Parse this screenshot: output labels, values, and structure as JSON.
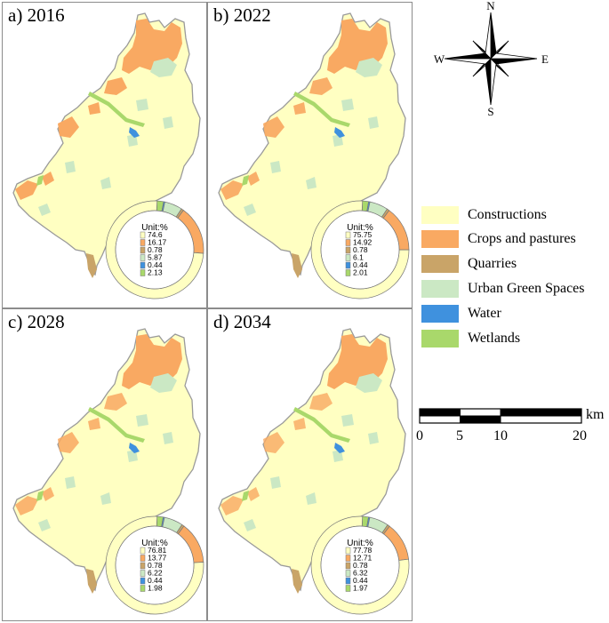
{
  "panels": [
    {
      "label": "a) 2016",
      "unit": "Unit:%",
      "values": [
        "74.6",
        "16.17",
        "0.78",
        "5.87",
        "0.44",
        "2.13"
      ],
      "shares": [
        74.6,
        16.17,
        0.78,
        5.87,
        0.44,
        2.13
      ]
    },
    {
      "label": "b) 2022",
      "unit": "Unit:%",
      "values": [
        "75.75",
        "14.92",
        "0.78",
        "6.1",
        "0.44",
        "2.01"
      ],
      "shares": [
        75.75,
        14.92,
        0.78,
        6.1,
        0.44,
        2.01
      ]
    },
    {
      "label": "c) 2028",
      "unit": "Unit:%",
      "values": [
        "76.81",
        "13.77",
        "0.78",
        "6.22",
        "0.44",
        "1.98"
      ],
      "shares": [
        76.81,
        13.77,
        0.78,
        6.22,
        0.44,
        1.98
      ]
    },
    {
      "label": "d) 2034",
      "unit": "Unit:%",
      "values": [
        "77.78",
        "12.71",
        "0.78",
        "6.32",
        "0.44",
        "1.97"
      ],
      "shares": [
        77.78,
        12.71,
        0.78,
        6.32,
        0.44,
        1.97
      ]
    }
  ],
  "classes": [
    {
      "label": "Constructions",
      "color": "#ffffc2"
    },
    {
      "label": "Crops and pastures",
      "color": "#f9a962"
    },
    {
      "label": "Quarries",
      "color": "#c9a468"
    },
    {
      "label": "Urban Green Spaces",
      "color": "#cbe8c4"
    },
    {
      "label": "Water",
      "color": "#3f91de"
    },
    {
      "label": "Wetlands",
      "color": "#a9d86b"
    }
  ],
  "compass": {
    "n": "N",
    "s": "S",
    "e": "E",
    "w": "W"
  },
  "scale": {
    "unit": "km",
    "ticks": [
      "0",
      "5",
      "10",
      "20"
    ]
  }
}
